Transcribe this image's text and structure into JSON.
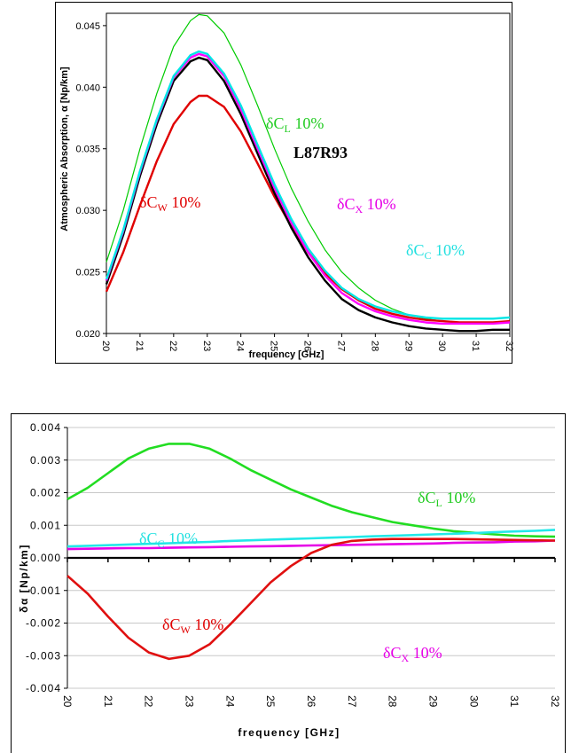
{
  "chart_data": [
    {
      "type": "line",
      "xlabel": "frequency [GHz]",
      "ylabel": "Atmospheric Absorption, α [Np/km]",
      "xlim": [
        20,
        32
      ],
      "ylim": [
        0.02,
        0.046
      ],
      "x_ticks": [
        "20",
        "21",
        "22",
        "23",
        "24",
        "25",
        "26",
        "27",
        "28",
        "29",
        "30",
        "31",
        "32"
      ],
      "y_ticks": [
        "0.020",
        "0.025",
        "0.030",
        "0.035",
        "0.040",
        "0.045"
      ],
      "grid": false,
      "x": [
        20,
        20.5,
        21,
        21.5,
        22,
        22.5,
        22.75,
        23,
        23.5,
        24,
        24.5,
        25,
        25.5,
        26,
        26.5,
        27,
        27.5,
        28,
        28.5,
        29,
        29.5,
        30,
        30.5,
        31,
        31.5,
        32
      ],
      "series": [
        {
          "name": "L87R93",
          "color": "#000000",
          "style": "solid",
          "values": [
            0.024,
            0.028,
            0.0328,
            0.037,
            0.0405,
            0.0421,
            0.0424,
            0.0422,
            0.0405,
            0.0378,
            0.0346,
            0.0314,
            0.0286,
            0.0262,
            0.0243,
            0.0228,
            0.0219,
            0.0213,
            0.0209,
            0.0206,
            0.0204,
            0.0203,
            0.0202,
            0.0202,
            0.0203,
            0.0203
          ]
        },
        {
          "name": "δC_X 10%",
          "color": "#ff00ff",
          "style": "solid",
          "values": [
            0.0243,
            0.0283,
            0.0331,
            0.0373,
            0.0408,
            0.0424,
            0.0427,
            0.0425,
            0.0409,
            0.0382,
            0.035,
            0.0318,
            0.029,
            0.0266,
            0.0247,
            0.0233,
            0.0224,
            0.0218,
            0.0214,
            0.0211,
            0.0209,
            0.0208,
            0.0208,
            0.0208,
            0.0208,
            0.0209
          ]
        },
        {
          "name": "δC_C 10%",
          "color": "#00e5e5",
          "style": "solid",
          "values": [
            0.0244,
            0.0284,
            0.0332,
            0.0374,
            0.0409,
            0.0426,
            0.0429,
            0.0427,
            0.0411,
            0.0385,
            0.0353,
            0.0321,
            0.0293,
            0.0269,
            0.0251,
            0.0237,
            0.0228,
            0.0222,
            0.0218,
            0.0215,
            0.0213,
            0.0212,
            0.0212,
            0.0212,
            0.0212,
            0.0213
          ]
        },
        {
          "name": "δC_L 10%",
          "color": "#00cc00",
          "style": "solid",
          "values": [
            0.0258,
            0.03,
            0.035,
            0.0395,
            0.0433,
            0.0454,
            0.0459,
            0.0458,
            0.0444,
            0.0418,
            0.0385,
            0.035,
            0.0318,
            0.0291,
            0.0268,
            0.025,
            0.0237,
            0.0227,
            0.022,
            0.0215,
            0.0212,
            0.021,
            0.0209,
            0.0209,
            0.0209,
            0.0209
          ]
        },
        {
          "name": "δC_W 10%",
          "color": "#e00000",
          "style": "solid",
          "values": [
            0.0234,
            0.0266,
            0.0304,
            0.034,
            0.037,
            0.0388,
            0.0393,
            0.0393,
            0.0384,
            0.0364,
            0.0338,
            0.0311,
            0.0287,
            0.0266,
            0.0249,
            0.0236,
            0.0227,
            0.022,
            0.0216,
            0.0213,
            0.0211,
            0.021,
            0.0209,
            0.0209,
            0.0209,
            0.021
          ]
        }
      ],
      "labels": {
        "l87r93": "L87R93",
        "cl": "δC",
        "cl_sub": "L",
        "cl_pct": " 10%",
        "cx": "δC",
        "cx_sub": "X",
        "cx_pct": " 10%",
        "cc": "δC",
        "cc_sub": "C",
        "cc_pct": " 10%",
        "cw": "δC",
        "cw_sub": "W",
        "cw_pct": " 10%"
      }
    },
    {
      "type": "line",
      "xlabel": "frequency [GHz]",
      "ylabel": "δα [Np/km]",
      "xlim": [
        20,
        32
      ],
      "ylim": [
        -0.004,
        0.004
      ],
      "x_ticks": [
        "20",
        "21",
        "22",
        "23",
        "24",
        "25",
        "26",
        "27",
        "28",
        "29",
        "30",
        "31",
        "32"
      ],
      "y_ticks": [
        "0.004",
        "0.003",
        "0.002",
        "0.001",
        "0.000",
        "-0.001",
        "-0.002",
        "-0.003",
        "-0.004"
      ],
      "grid": true,
      "x": [
        20,
        20.5,
        21,
        21.5,
        22,
        22.5,
        23,
        23.5,
        24,
        24.5,
        25,
        25.5,
        26,
        26.5,
        27,
        27.5,
        28,
        28.5,
        29,
        29.5,
        30,
        30.5,
        31,
        31.5,
        32
      ],
      "series": [
        {
          "name": "δC_L 10%",
          "color": "#22dd22",
          "values": [
            0.0018,
            0.00215,
            0.0026,
            0.00305,
            0.00335,
            0.0035,
            0.0035,
            0.00335,
            0.00305,
            0.0027,
            0.0024,
            0.0021,
            0.00185,
            0.0016,
            0.0014,
            0.00125,
            0.0011,
            0.001,
            0.0009,
            0.00082,
            0.00077,
            0.00072,
            0.00068,
            0.00066,
            0.00065
          ]
        },
        {
          "name": "δC_C 10%",
          "color": "#22e8e8",
          "values": [
            0.00035,
            0.00037,
            0.00039,
            0.00041,
            0.00043,
            0.00045,
            0.00047,
            0.00049,
            0.00052,
            0.00054,
            0.00056,
            0.00058,
            0.0006,
            0.00062,
            0.00064,
            0.00066,
            0.00068,
            0.0007,
            0.00072,
            0.00074,
            0.00076,
            0.00079,
            0.00081,
            0.00083,
            0.00086
          ]
        },
        {
          "name": "δC_X 10%",
          "color": "#e600e6",
          "values": [
            0.00027,
            0.00028,
            0.00029,
            0.0003,
            0.0003,
            0.00031,
            0.00032,
            0.00033,
            0.00034,
            0.00035,
            0.00036,
            0.00037,
            0.00038,
            0.00039,
            0.0004,
            0.00041,
            0.00042,
            0.00043,
            0.00044,
            0.00046,
            0.00047,
            0.00048,
            0.0005,
            0.00051,
            0.00053
          ]
        },
        {
          "name": "δC_W 10%",
          "color": "#e01010",
          "values": [
            -0.00055,
            -0.0011,
            -0.0018,
            -0.00245,
            -0.0029,
            -0.0031,
            -0.003,
            -0.00265,
            -0.00205,
            -0.0014,
            -0.00075,
            -0.00025,
            0.00015,
            0.0004,
            0.00052,
            0.00056,
            0.00058,
            0.00058,
            0.00058,
            0.00058,
            0.00057,
            0.00056,
            0.00055,
            0.00054,
            0.00053
          ]
        }
      ],
      "labels": {
        "cl": "δC",
        "cl_sub": "L",
        "cl_pct": " 10%",
        "cc": "δC",
        "cc_sub": "C",
        "cc_pct": " 10%",
        "cx": "δC",
        "cx_sub": "X",
        "cx_pct": " 10%",
        "cw": "δC",
        "cw_sub": "W",
        "cw_pct": " 10%"
      }
    }
  ]
}
